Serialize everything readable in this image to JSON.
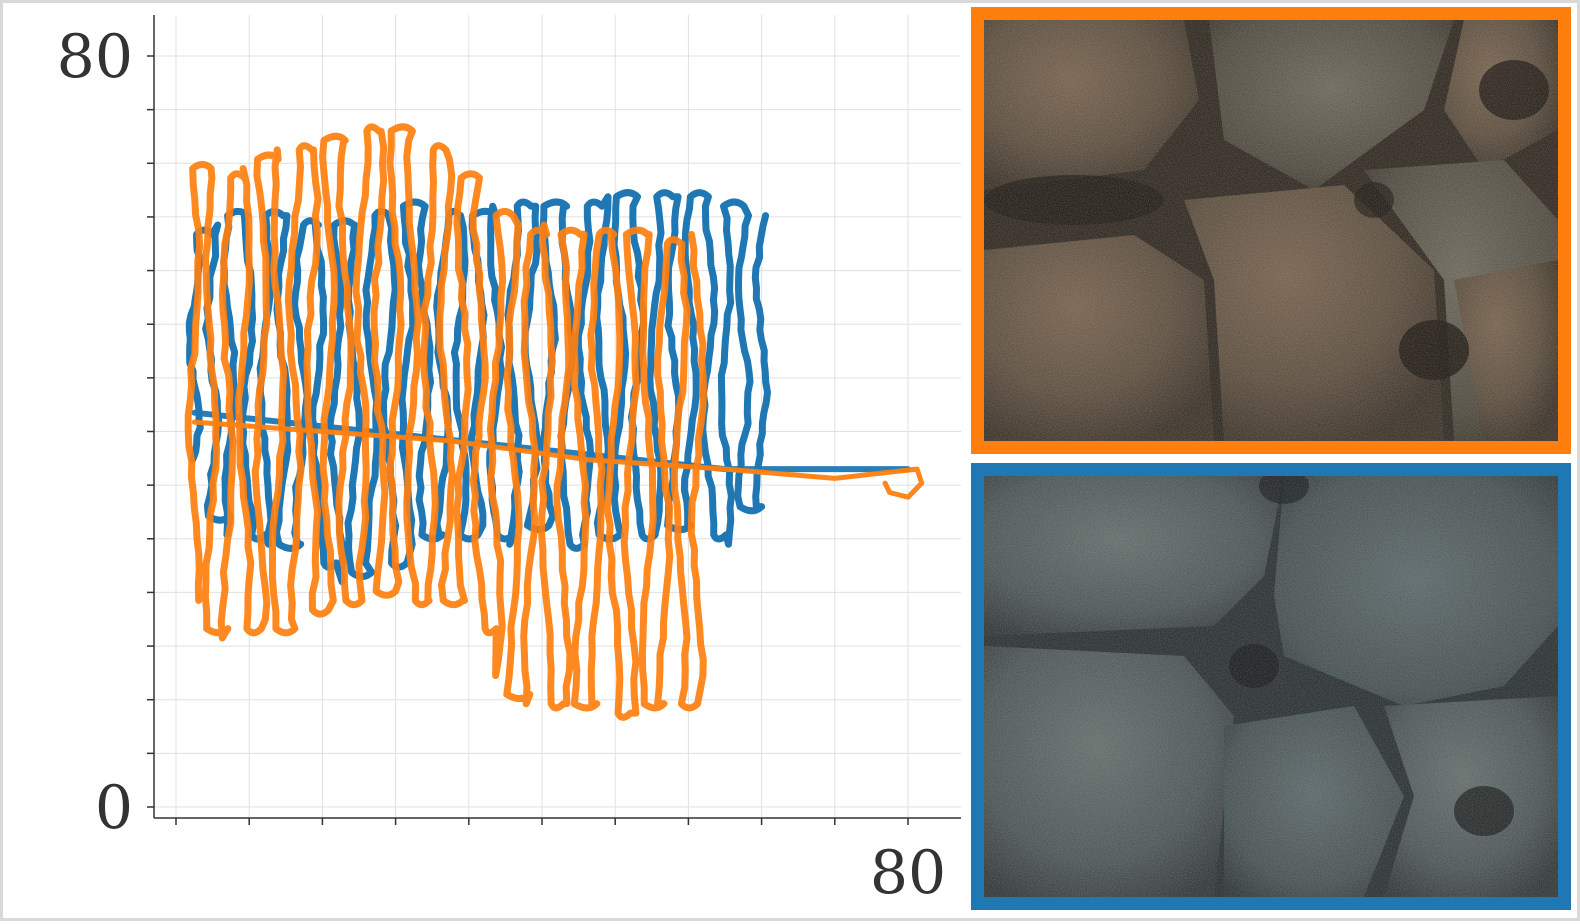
{
  "colors": {
    "blue": "#1f77b4",
    "orange": "#ff7f0e",
    "grid": "#e0e0e0",
    "axis": "#333333",
    "frame": "#d9d9d9"
  },
  "chart_data": {
    "type": "scatter",
    "title": "",
    "xlabel": "",
    "ylabel": "",
    "xlim": [
      0,
      80
    ],
    "ylim": [
      0,
      80
    ],
    "x_tick_labels": [
      {
        "value": 80,
        "label": "80"
      }
    ],
    "y_tick_labels": [
      {
        "value": 0,
        "label": "0"
      },
      {
        "value": 80,
        "label": "80"
      }
    ],
    "grid": true,
    "series": [
      {
        "color_key": "blue",
        "pattern": "lawnmower",
        "x_start": 2,
        "x_end": 64,
        "lanes": 33,
        "y_top": [
          61,
          62,
          63,
          63,
          63,
          63,
          62,
          62,
          62,
          62,
          63,
          63,
          64,
          64,
          63,
          63,
          63,
          64,
          64,
          64,
          64,
          64,
          64,
          65,
          65,
          64,
          65,
          65,
          65,
          64,
          64,
          63,
          63
        ],
        "y_bottom": [
          37,
          31,
          29,
          29,
          28,
          28,
          28,
          26,
          24,
          25,
          26,
          26,
          28,
          29,
          29,
          29,
          30,
          29,
          28,
          30,
          31,
          28,
          29,
          29,
          29,
          29,
          29,
          30,
          30,
          29,
          28,
          32,
          32
        ],
        "transit": [
          [
            2,
            42
          ],
          [
            60,
            36
          ],
          [
            73,
            36
          ],
          [
            80,
            36
          ]
        ]
      },
      {
        "color_key": "orange",
        "pattern": "lawnmower",
        "x_start": 2,
        "x_end": 57,
        "lanes": 31,
        "y_top": [
          68,
          67,
          67,
          68,
          69,
          70,
          70,
          70,
          71,
          71,
          72,
          72,
          72,
          71,
          70,
          69,
          67,
          63,
          63,
          62,
          61,
          62,
          61,
          61,
          61,
          61,
          61,
          61,
          60,
          60,
          61
        ],
        "y_bottom": [
          22,
          19,
          18,
          19,
          20,
          19,
          20,
          21,
          22,
          22,
          24,
          23,
          24,
          22,
          22,
          22,
          22,
          19,
          14,
          12,
          11,
          11,
          11,
          11,
          11,
          10,
          10,
          11,
          11,
          11,
          14
        ],
        "transit": [
          [
            2,
            41
          ],
          [
            30,
            39
          ],
          [
            45,
            37
          ],
          [
            60,
            36
          ],
          [
            72,
            35
          ],
          [
            81,
            36
          ],
          [
            81.5,
            34.5
          ],
          [
            80,
            33
          ],
          [
            78,
            33.5
          ],
          [
            77.5,
            34.5
          ]
        ]
      }
    ]
  },
  "photos": {
    "top": {
      "border_color_key": "orange"
    },
    "bottom": {
      "border_color_key": "blue"
    }
  }
}
